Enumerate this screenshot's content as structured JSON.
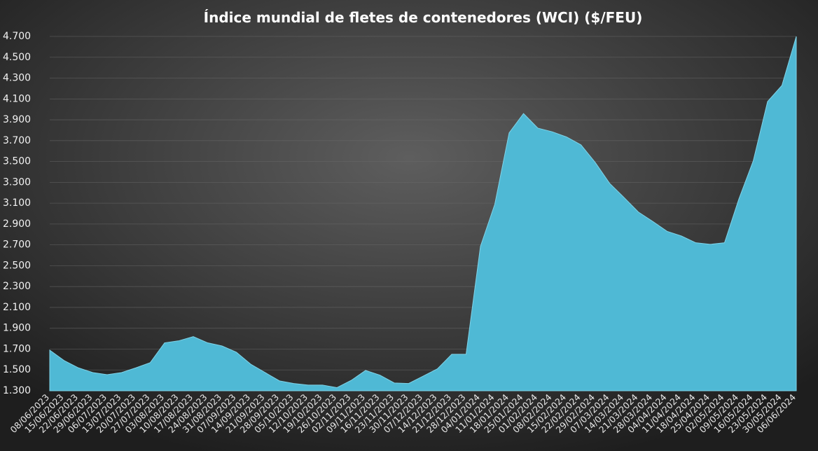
{
  "chart_data": {
    "type": "area",
    "title": "Índice mundial de fletes de contenedores (WCI) ($/FEU)",
    "categories": [
      "08/06/2023",
      "15/06/2023",
      "22/06/2023",
      "29/06/2023",
      "06/07/2023",
      "13/07/2023",
      "20/07/2023",
      "27/07/2023",
      "03/08/2023",
      "10/08/2023",
      "17/08/2023",
      "24/08/2023",
      "31/08/2023",
      "07/09/2023",
      "14/09/2023",
      "21/09/2023",
      "28/09/2023",
      "05/10/2023",
      "12/10/2023",
      "19/10/2023",
      "26/10/2023",
      "02/11/2023",
      "09/11/2023",
      "16/11/2023",
      "23/11/2023",
      "30/11/2023",
      "07/12/2023",
      "14/12/2023",
      "21/12/2023",
      "28/12/2023",
      "04/01/2024",
      "11/01/2024",
      "18/01/2024",
      "25/01/2024",
      "01/02/2024",
      "08/02/2024",
      "15/02/2024",
      "22/02/2024",
      "29/02/2024",
      "07/03/2024",
      "14/03/2024",
      "21/03/2024",
      "28/03/2024",
      "04/04/2024",
      "11/04/2024",
      "18/04/2024",
      "25/04/2024",
      "02/05/2024",
      "09/05/2024",
      "16/05/2024",
      "23/05/2024",
      "30/05/2024",
      "06/06/2024"
    ],
    "values": [
      1690,
      1590,
      1520,
      1475,
      1455,
      1475,
      1520,
      1570,
      1760,
      1780,
      1820,
      1760,
      1730,
      1670,
      1555,
      1475,
      1395,
      1370,
      1355,
      1355,
      1330,
      1400,
      1495,
      1450,
      1375,
      1370,
      1440,
      1510,
      1650,
      1650,
      2685,
      3090,
      3775,
      3960,
      3820,
      3785,
      3735,
      3660,
      3490,
      3290,
      3155,
      3015,
      2925,
      2830,
      2785,
      2720,
      2705,
      2720,
      3140,
      3505,
      4075,
      4230,
      4700
    ],
    "color": "#4fb9d5",
    "ylim": [
      1300,
      4700
    ],
    "yticks": [
      {
        "value": 1300,
        "label": "1.300"
      },
      {
        "value": 1500,
        "label": "1.500"
      },
      {
        "value": 1700,
        "label": "1.700"
      },
      {
        "value": 1900,
        "label": "1.900"
      },
      {
        "value": 2100,
        "label": "2.100"
      },
      {
        "value": 2300,
        "label": "2.300"
      },
      {
        "value": 2500,
        "label": "2.500"
      },
      {
        "value": 2700,
        "label": "2.700"
      },
      {
        "value": 2900,
        "label": "2.900"
      },
      {
        "value": 3100,
        "label": "3.100"
      },
      {
        "value": 3300,
        "label": "3.300"
      },
      {
        "value": 3500,
        "label": "3.500"
      },
      {
        "value": 3700,
        "label": "3.700"
      },
      {
        "value": 3900,
        "label": "3.900"
      },
      {
        "value": 4100,
        "label": "4.100"
      },
      {
        "value": 4300,
        "label": "4.300"
      },
      {
        "value": 4500,
        "label": "4.500"
      },
      {
        "value": 4700,
        "label": "4.700"
      }
    ],
    "grid": true
  }
}
